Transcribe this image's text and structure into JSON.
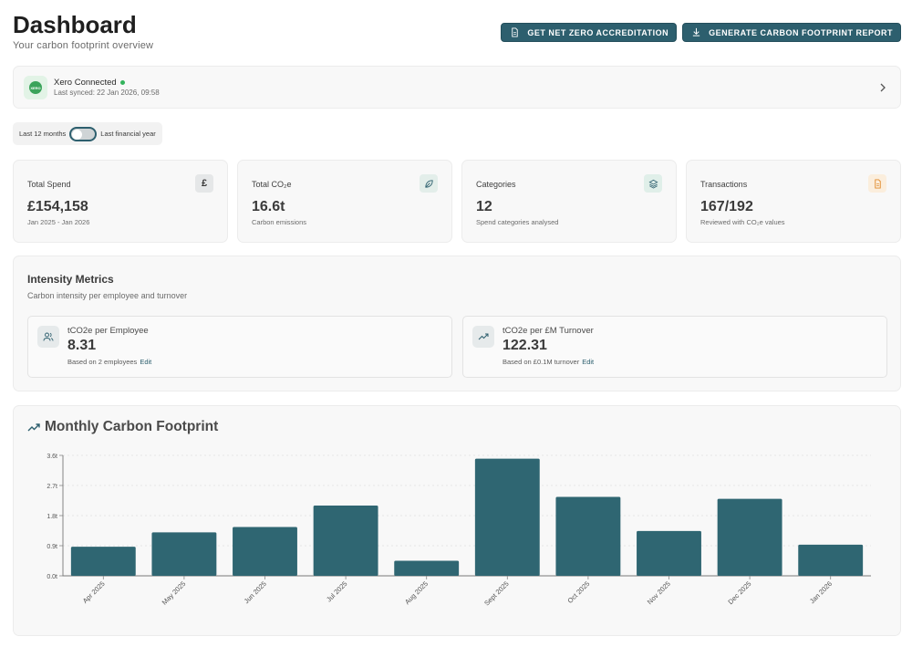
{
  "header": {
    "title": "Dashboard",
    "subtitle": "Your carbon footprint overview",
    "btn_accreditation": "GET NET ZERO ACCREDITATION",
    "btn_report": "GENERATE CARBON FOOTPRINT REPORT"
  },
  "xero": {
    "name": "Xero Connected",
    "last_synced": "Last synced: 22 Jan 2026, 09:58",
    "logo_text": "XERO"
  },
  "period": {
    "left_label": "Last 12 months",
    "right_label": "Last financial year",
    "selected": "Last 12 months"
  },
  "stats": [
    {
      "label": "Total Spend",
      "value": "£154,158",
      "sub": "Jan 2025 - Jan 2026",
      "icon": "pound-icon",
      "color": "#e5e7e8"
    },
    {
      "label": "Total CO₂e",
      "value": "16.6t",
      "sub": "Carbon emissions",
      "icon": "leaf-icon",
      "color": "#e3eeea"
    },
    {
      "label": "Categories",
      "value": "12",
      "sub": "Spend categories analysed",
      "icon": "layers-icon",
      "color": "#e0efe9"
    },
    {
      "label": "Transactions",
      "value": "167/192",
      "sub": "Reviewed with CO₂e values",
      "icon": "file-icon",
      "color": "#fbeedd"
    }
  ],
  "intensity": {
    "title": "Intensity Metrics",
    "subtitle": "Carbon intensity per employee and turnover",
    "employee": {
      "label": "tCO2e per Employee",
      "value": "8.31",
      "basis": "Based on 2 employees",
      "edit": "Edit"
    },
    "turnover": {
      "label": "tCO2e per £M Turnover",
      "value": "122.31",
      "basis": "Based on £0.1M turnover",
      "edit": "Edit"
    }
  },
  "chart_title": "Monthly Carbon Footprint",
  "colors": {
    "accent": "#2d5f6e",
    "bar": "#2f6672"
  },
  "chart_data": {
    "type": "bar",
    "title": "Monthly Carbon Footprint",
    "categories": [
      "Apr 2025",
      "May 2025",
      "Jun 2025",
      "Jul 2025",
      "Aug 2025",
      "Sept 2025",
      "Oct 2025",
      "Nov 2025",
      "Dec 2025",
      "Jan 2026"
    ],
    "values": [
      0.87,
      1.3,
      1.46,
      2.1,
      0.45,
      3.5,
      2.36,
      1.34,
      2.3,
      0.93
    ],
    "yticks": [
      "0.0t",
      "0.9t",
      "1.8t",
      "2.7t",
      "3.6t"
    ],
    "ylim": [
      0,
      3.6
    ],
    "xlabel": "",
    "ylabel": "",
    "grid": true
  }
}
